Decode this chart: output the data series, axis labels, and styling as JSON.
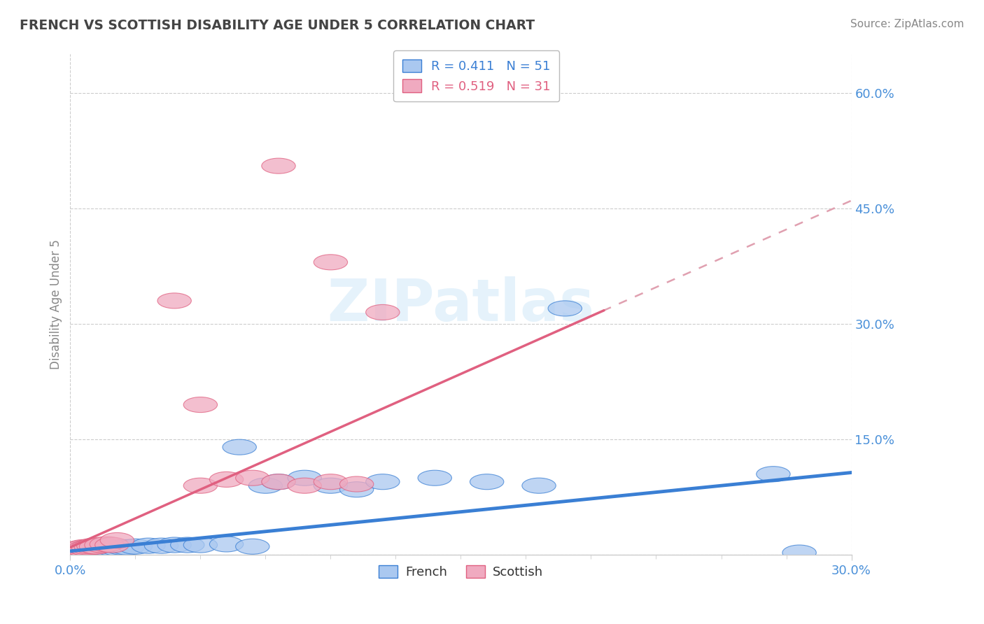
{
  "title": "FRENCH VS SCOTTISH DISABILITY AGE UNDER 5 CORRELATION CHART",
  "source": "Source: ZipAtlas.com",
  "ylabel": "Disability Age Under 5",
  "y_tick_labels": [
    "15.0%",
    "30.0%",
    "45.0%",
    "60.0%"
  ],
  "y_tick_values": [
    0.15,
    0.3,
    0.45,
    0.6
  ],
  "xlim": [
    0.0,
    0.3
  ],
  "ylim": [
    0.0,
    0.65
  ],
  "R_french": 0.411,
  "N_french": 51,
  "R_scottish": 0.519,
  "N_scottish": 31,
  "french_color": "#aac8f0",
  "scottish_color": "#f0aac0",
  "french_line_color": "#3a7fd4",
  "scottish_line_color": "#e06080",
  "axis_label_color": "#4a90d9",
  "grid_color": "#cccccc",
  "title_color": "#444444",
  "source_color": "#888888",
  "ylabel_color": "#888888",
  "watermark_color": "#d0e8f8"
}
